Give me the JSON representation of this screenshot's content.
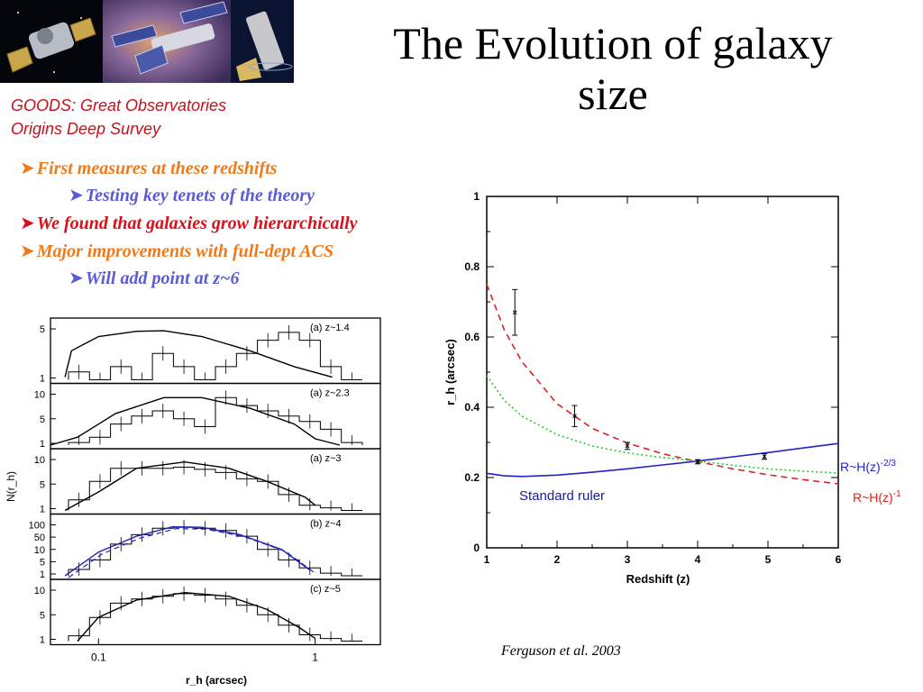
{
  "slide": {
    "title_line1": "The Evolution of galaxy",
    "title_line2": "size",
    "goods_line1": "GOODS: Great Observatories",
    "goods_line2": "Origins Deep Survey",
    "images": [
      "telescope-satellite-icon",
      "satellite-icon",
      "space-telescope-icon"
    ],
    "bullets": [
      {
        "text": "First measures at these redshifts",
        "color": "#f07a1a",
        "level": 0
      },
      {
        "text": "Testing key tenets of the theory",
        "color": "#5b5bd6",
        "level": 1
      },
      {
        "text": "We found that galaxies grow hierarchically",
        "color": "#d8101a",
        "level": 0
      },
      {
        "text": "Major improvements with full-dept ACS",
        "color": "#f07a1a",
        "level": 0
      },
      {
        "text": "Will add point at z~6",
        "color": "#5b5bd6",
        "level": 1
      }
    ],
    "citation": "Ferguson et al. 2003"
  },
  "chart_data": [
    {
      "type": "line",
      "xlabel": "Redshift (z)",
      "ylabel": "r_h (arcsec)",
      "xlim": [
        1,
        6
      ],
      "ylim": [
        0,
        1
      ],
      "xticks": [
        "1",
        "2",
        "3",
        "4",
        "5",
        "6"
      ],
      "yticks": [
        "0",
        "0.2",
        "0.4",
        "0.6",
        "0.8",
        "1"
      ],
      "points": {
        "x": [
          1.4,
          2.25,
          3.0,
          4.0,
          4.95
        ],
        "y": [
          0.67,
          0.375,
          0.29,
          0.245,
          0.26
        ],
        "yerr": [
          0.065,
          0.03,
          0.01,
          0.006,
          0.008
        ]
      },
      "series": [
        {
          "name": "R~H(z)",
          "exp": "-2/3",
          "color": "#2222cc",
          "style": "solid",
          "x": [
            1.0,
            1.25,
            1.5,
            2.0,
            2.5,
            3.0,
            3.5,
            4.0,
            4.5,
            5.0,
            5.5,
            6.0
          ],
          "y": [
            0.212,
            0.205,
            0.203,
            0.207,
            0.215,
            0.225,
            0.236,
            0.247,
            0.259,
            0.271,
            0.284,
            0.297
          ]
        },
        {
          "name": "R~H(z)",
          "exp": "-1",
          "color": "#dd2020",
          "style": "dashed",
          "x": [
            1.0,
            1.25,
            1.5,
            2.0,
            2.5,
            3.0,
            3.5,
            4.0,
            4.5,
            5.0,
            5.5,
            6.0
          ],
          "y": [
            0.75,
            0.62,
            0.53,
            0.41,
            0.34,
            0.298,
            0.268,
            0.245,
            0.225,
            0.208,
            0.194,
            0.182
          ]
        },
        {
          "name": "",
          "color": "#22cc22",
          "style": "dotted",
          "x": [
            1.0,
            1.25,
            1.5,
            2.0,
            2.5,
            3.0,
            3.5,
            4.0,
            4.5,
            5.0,
            5.5,
            6.0
          ],
          "y": [
            0.49,
            0.42,
            0.375,
            0.322,
            0.29,
            0.27,
            0.257,
            0.247,
            0.235,
            0.225,
            0.218,
            0.213
          ]
        }
      ],
      "annotations": [
        {
          "text": "Standard ruler",
          "color": "#1a1aa0"
        }
      ]
    },
    {
      "type": "line",
      "xlabel": "r_h (arcsec)",
      "ylabel": "N(r_h)",
      "xscale": "log",
      "xlim": [
        0.06,
        2
      ],
      "xticks": [
        "0.1",
        "1"
      ],
      "panels": [
        {
          "label": "(a)",
          "z": "z~1.4",
          "yticks": [
            "1",
            "5"
          ]
        },
        {
          "label": "(a)",
          "z": "z~2.3",
          "yticks": [
            "1",
            "5",
            "10"
          ]
        },
        {
          "label": "(a)",
          "z": "z~3",
          "yticks": [
            "1",
            "5",
            "10"
          ]
        },
        {
          "label": "(b)",
          "z": "z~4",
          "yticks": [
            "1",
            "5",
            "10",
            "50",
            "100"
          ]
        },
        {
          "label": "(c)",
          "z": "z~5",
          "yticks": [
            "1",
            "5",
            "10"
          ]
        }
      ]
    }
  ]
}
